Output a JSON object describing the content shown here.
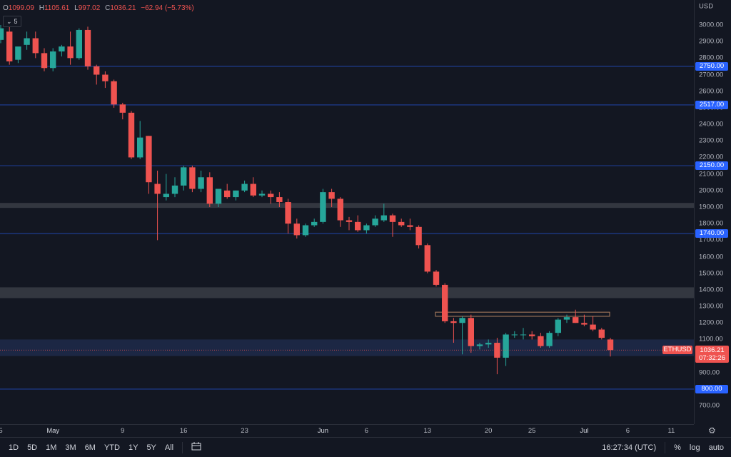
{
  "header": {
    "open_label": "O",
    "open": "1099.09",
    "high_label": "H",
    "high": "1105.61",
    "low_label": "L",
    "low": "997.02",
    "close_label": "C",
    "close": "1036.21",
    "change": "−62.94 (−5.73%)",
    "indicator_count": "5"
  },
  "axis": {
    "currency": "USD"
  },
  "price_tag": {
    "symbol": "ETHUSD",
    "price": "1036.21",
    "countdown": "07:32:26"
  },
  "colors": {
    "up": "#26a69a",
    "down": "#ef5350",
    "bg": "#131722",
    "grid": "#2a2e39",
    "hline": "#2962ff",
    "tag": "#2962ff"
  },
  "bottom": {
    "timeframes": [
      "1D",
      "5D",
      "1M",
      "3M",
      "6M",
      "YTD",
      "1Y",
      "5Y",
      "All"
    ],
    "clock": "16:27:34 (UTC)",
    "percent": "%",
    "log": "log",
    "auto": "auto"
  },
  "chart_data": {
    "type": "candlestick",
    "symbol": "ETHUSD",
    "ylim": [
      600,
      3200
    ],
    "yticks": [
      700,
      900,
      1000,
      1100,
      1200,
      1300,
      1400,
      1500,
      1600,
      1700,
      1800,
      1900,
      2000,
      2100,
      2200,
      2300,
      2400,
      2500,
      2600,
      2700,
      2800,
      2900,
      3000
    ],
    "xticks": [
      {
        "label": "5",
        "day": 0,
        "bold": false
      },
      {
        "label": "May",
        "day": 6,
        "bold": true
      },
      {
        "label": "9",
        "day": 14,
        "bold": false
      },
      {
        "label": "16",
        "day": 21,
        "bold": false
      },
      {
        "label": "23",
        "day": 28,
        "bold": false
      },
      {
        "label": "Jun",
        "day": 37,
        "bold": true
      },
      {
        "label": "6",
        "day": 42,
        "bold": false
      },
      {
        "label": "13",
        "day": 49,
        "bold": false
      },
      {
        "label": "20",
        "day": 56,
        "bold": false
      },
      {
        "label": "25",
        "day": 61,
        "bold": false
      },
      {
        "label": "Jul",
        "day": 67,
        "bold": true
      },
      {
        "label": "6",
        "day": 72,
        "bold": false
      },
      {
        "label": "11",
        "day": 77,
        "bold": false
      }
    ],
    "horizontal_levels": [
      2750.0,
      2517.0,
      2150.0,
      1740.0,
      800.0
    ],
    "zones": [
      {
        "from": 1895,
        "to": 1925,
        "color": "#3a3d45"
      },
      {
        "from": 1350,
        "to": 1415,
        "color": "#3a3d45"
      },
      {
        "from": 1000,
        "to": 1100,
        "color": "#1e2a4a"
      }
    ],
    "boxes": [
      {
        "day_from": 50,
        "day_to": 70,
        "from": 1240,
        "to": 1265
      }
    ],
    "candles": [
      {
        "o": 2910,
        "h": 3000,
        "l": 2890,
        "c": 2980
      },
      {
        "o": 2960,
        "h": 3000,
        "l": 2760,
        "c": 2780
      },
      {
        "o": 2790,
        "h": 2850,
        "l": 2770,
        "c": 2870
      },
      {
        "o": 2880,
        "h": 2960,
        "l": 2850,
        "c": 2920
      },
      {
        "o": 2920,
        "h": 2960,
        "l": 2800,
        "c": 2830
      },
      {
        "o": 2830,
        "h": 2860,
        "l": 2720,
        "c": 2740
      },
      {
        "o": 2740,
        "h": 2860,
        "l": 2720,
        "c": 2840
      },
      {
        "o": 2840,
        "h": 2880,
        "l": 2810,
        "c": 2870
      },
      {
        "o": 2870,
        "h": 2960,
        "l": 2760,
        "c": 2800
      },
      {
        "o": 2800,
        "h": 2980,
        "l": 2790,
        "c": 2970
      },
      {
        "o": 2970,
        "h": 2990,
        "l": 2730,
        "c": 2750
      },
      {
        "o": 2750,
        "h": 2760,
        "l": 2640,
        "c": 2700
      },
      {
        "o": 2700,
        "h": 2720,
        "l": 2620,
        "c": 2660
      },
      {
        "o": 2660,
        "h": 2670,
        "l": 2500,
        "c": 2520
      },
      {
        "o": 2520,
        "h": 2530,
        "l": 2430,
        "c": 2470
      },
      {
        "o": 2470,
        "h": 2480,
        "l": 2190,
        "c": 2200
      },
      {
        "o": 2200,
        "h": 2420,
        "l": 2190,
        "c": 2320
      },
      {
        "o": 2330,
        "h": 2330,
        "l": 1980,
        "c": 2050
      },
      {
        "o": 2040,
        "h": 2120,
        "l": 1700,
        "c": 1980
      },
      {
        "o": 1960,
        "h": 2100,
        "l": 1940,
        "c": 1980
      },
      {
        "o": 1980,
        "h": 2080,
        "l": 1960,
        "c": 2030
      },
      {
        "o": 2030,
        "h": 2150,
        "l": 2000,
        "c": 2140
      },
      {
        "o": 2140,
        "h": 2150,
        "l": 1990,
        "c": 2010
      },
      {
        "o": 2010,
        "h": 2120,
        "l": 1990,
        "c": 2080
      },
      {
        "o": 2080,
        "h": 2110,
        "l": 1900,
        "c": 1920
      },
      {
        "o": 1920,
        "h": 2000,
        "l": 1900,
        "c": 2010
      },
      {
        "o": 2000,
        "h": 2040,
        "l": 1950,
        "c": 1960
      },
      {
        "o": 1960,
        "h": 2000,
        "l": 1940,
        "c": 2000
      },
      {
        "o": 2000,
        "h": 2060,
        "l": 1990,
        "c": 2040
      },
      {
        "o": 2040,
        "h": 2080,
        "l": 1960,
        "c": 1970
      },
      {
        "o": 1970,
        "h": 2000,
        "l": 1960,
        "c": 1980
      },
      {
        "o": 1980,
        "h": 2000,
        "l": 1920,
        "c": 1960
      },
      {
        "o": 1960,
        "h": 1990,
        "l": 1900,
        "c": 1930
      },
      {
        "o": 1930,
        "h": 1950,
        "l": 1740,
        "c": 1800
      },
      {
        "o": 1800,
        "h": 1830,
        "l": 1710,
        "c": 1730
      },
      {
        "o": 1730,
        "h": 1800,
        "l": 1720,
        "c": 1790
      },
      {
        "o": 1790,
        "h": 1830,
        "l": 1780,
        "c": 1810
      },
      {
        "o": 1810,
        "h": 2010,
        "l": 1800,
        "c": 1990
      },
      {
        "o": 1990,
        "h": 2010,
        "l": 1900,
        "c": 1950
      },
      {
        "o": 1950,
        "h": 1960,
        "l": 1780,
        "c": 1820
      },
      {
        "o": 1820,
        "h": 1840,
        "l": 1760,
        "c": 1810
      },
      {
        "o": 1810,
        "h": 1850,
        "l": 1750,
        "c": 1760
      },
      {
        "o": 1760,
        "h": 1800,
        "l": 1740,
        "c": 1790
      },
      {
        "o": 1790,
        "h": 1850,
        "l": 1780,
        "c": 1830
      },
      {
        "o": 1820,
        "h": 1920,
        "l": 1810,
        "c": 1850
      },
      {
        "o": 1850,
        "h": 1860,
        "l": 1720,
        "c": 1810
      },
      {
        "o": 1810,
        "h": 1830,
        "l": 1780,
        "c": 1790
      },
      {
        "o": 1790,
        "h": 1830,
        "l": 1760,
        "c": 1780
      },
      {
        "o": 1780,
        "h": 1790,
        "l": 1650,
        "c": 1670
      },
      {
        "o": 1670,
        "h": 1680,
        "l": 1500,
        "c": 1510
      },
      {
        "o": 1510,
        "h": 1520,
        "l": 1420,
        "c": 1430
      },
      {
        "o": 1430,
        "h": 1440,
        "l": 1200,
        "c": 1210
      },
      {
        "o": 1210,
        "h": 1230,
        "l": 1080,
        "c": 1200
      },
      {
        "o": 1200,
        "h": 1240,
        "l": 1010,
        "c": 1230
      },
      {
        "o": 1230,
        "h": 1250,
        "l": 1020,
        "c": 1060
      },
      {
        "o": 1060,
        "h": 1080,
        "l": 1040,
        "c": 1070
      },
      {
        "o": 1070,
        "h": 1100,
        "l": 1050,
        "c": 1080
      },
      {
        "o": 1080,
        "h": 1110,
        "l": 890,
        "c": 990
      },
      {
        "o": 990,
        "h": 1140,
        "l": 940,
        "c": 1130
      },
      {
        "o": 1130,
        "h": 1150,
        "l": 1110,
        "c": 1130
      },
      {
        "o": 1130,
        "h": 1170,
        "l": 1100,
        "c": 1130
      },
      {
        "o": 1130,
        "h": 1150,
        "l": 1100,
        "c": 1120
      },
      {
        "o": 1120,
        "h": 1140,
        "l": 1050,
        "c": 1060
      },
      {
        "o": 1060,
        "h": 1150,
        "l": 1050,
        "c": 1140
      },
      {
        "o": 1140,
        "h": 1230,
        "l": 1120,
        "c": 1220
      },
      {
        "o": 1220,
        "h": 1250,
        "l": 1200,
        "c": 1235
      },
      {
        "o": 1235,
        "h": 1280,
        "l": 1200,
        "c": 1200
      },
      {
        "o": 1200,
        "h": 1250,
        "l": 1180,
        "c": 1190
      },
      {
        "o": 1190,
        "h": 1240,
        "l": 1150,
        "c": 1160
      },
      {
        "o": 1160,
        "h": 1170,
        "l": 1100,
        "c": 1110
      },
      {
        "o": 1100,
        "h": 1110,
        "l": 997,
        "c": 1036
      }
    ]
  }
}
